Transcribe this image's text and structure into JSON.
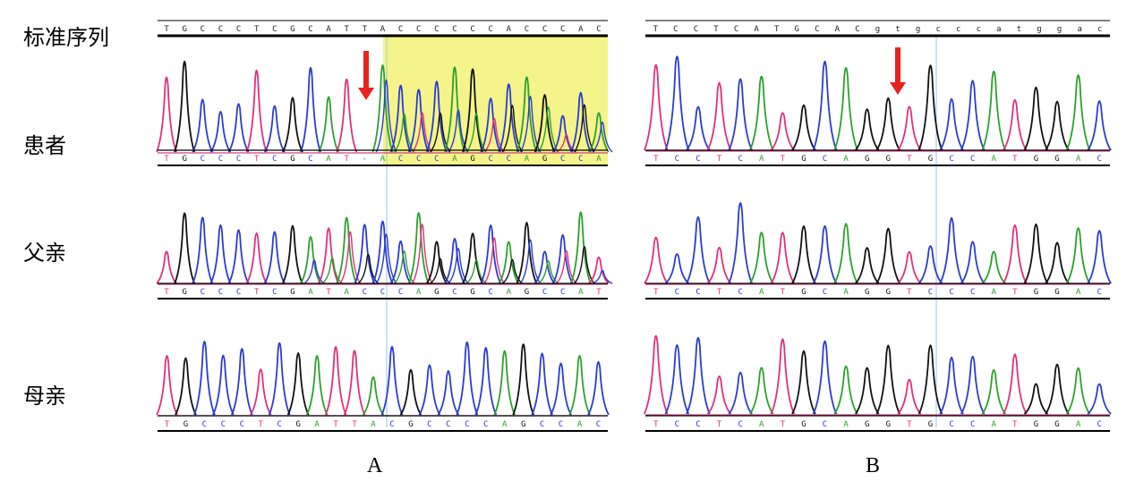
{
  "row_labels": {
    "reference": "标准序列",
    "patient": "患者",
    "father": "父亲",
    "mother": "母亲"
  },
  "panel_labels": {
    "a": "A",
    "b": "B"
  },
  "colors": {
    "A": "#2ca02c",
    "C": "#2b3bd1",
    "G": "#111111",
    "T": "#e0307a",
    "highlight": "#f4f48a",
    "arrow": "#e8231d",
    "guide": "#9cc7e6"
  },
  "panel_a": {
    "reference": "TGCCCTCGCATTACCCCCCACCCAC",
    "patient": "TGCCCTCGCAT-ACCCAGCCAGCCA",
    "father": "TGCCCTCGATACCCAGCGCAGCCAT",
    "mother": "TGCCCTCGATTACGCCCCAGCCAC"
  },
  "panel_b": {
    "reference": "TCCTCATGCACgtgcccatggac",
    "patient": "TCCTCATGCAGGTGCCATGGAC",
    "father": "TCCTCATGCAGGTCCCATGGAC",
    "mother": "TCCTCATGCAGGTGCCATGGAC"
  }
}
